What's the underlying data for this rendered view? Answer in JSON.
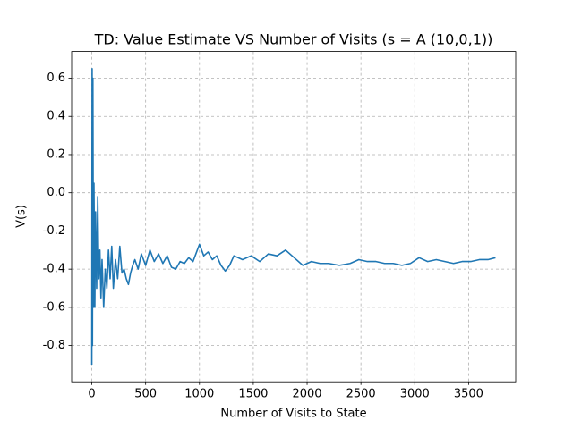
{
  "chart_data": {
    "type": "line",
    "title": "TD: Value Estimate VS Number of Visits (s = A (10,0,1))",
    "xlabel": "Number of Visits to State",
    "ylabel": "V(s)",
    "x": [
      0,
      3,
      6,
      10,
      15,
      20,
      28,
      35,
      45,
      55,
      65,
      75,
      85,
      95,
      110,
      125,
      140,
      155,
      170,
      185,
      200,
      220,
      240,
      260,
      280,
      300,
      320,
      340,
      360,
      380,
      400,
      430,
      460,
      500,
      540,
      580,
      620,
      660,
      700,
      740,
      780,
      820,
      860,
      900,
      940,
      980,
      1000,
      1040,
      1080,
      1120,
      1160,
      1200,
      1240,
      1280,
      1320,
      1400,
      1480,
      1560,
      1640,
      1720,
      1800,
      1880,
      1960,
      2040,
      2120,
      2200,
      2300,
      2400,
      2480,
      2560,
      2640,
      2720,
      2800,
      2880,
      2960,
      3040,
      3120,
      3200,
      3280,
      3360,
      3440,
      3520,
      3600,
      3680,
      3750
    ],
    "series": [
      {
        "color": "#1f77b4",
        "values": [
          -0.9,
          0.65,
          -0.8,
          0.6,
          -0.6,
          0.05,
          -0.6,
          -0.1,
          -0.5,
          -0.02,
          -0.45,
          -0.3,
          -0.55,
          -0.35,
          -0.6,
          -0.4,
          -0.5,
          -0.3,
          -0.45,
          -0.28,
          -0.5,
          -0.35,
          -0.45,
          -0.28,
          -0.42,
          -0.4,
          -0.45,
          -0.48,
          -0.42,
          -0.38,
          -0.35,
          -0.4,
          -0.32,
          -0.38,
          -0.3,
          -0.36,
          -0.32,
          -0.37,
          -0.33,
          -0.39,
          -0.4,
          -0.36,
          -0.37,
          -0.34,
          -0.36,
          -0.3,
          -0.27,
          -0.33,
          -0.31,
          -0.35,
          -0.33,
          -0.38,
          -0.41,
          -0.38,
          -0.33,
          -0.35,
          -0.33,
          -0.36,
          -0.32,
          -0.33,
          -0.3,
          -0.34,
          -0.38,
          -0.36,
          -0.37,
          -0.37,
          -0.38,
          -0.37,
          -0.35,
          -0.36,
          -0.36,
          -0.37,
          -0.37,
          -0.38,
          -0.37,
          -0.34,
          -0.36,
          -0.35,
          -0.36,
          -0.37,
          -0.36,
          -0.36,
          -0.35,
          -0.35,
          -0.34
        ]
      }
    ],
    "xlim": [
      -187.5,
      3937.5
    ],
    "xticks": [
      0,
      500,
      1000,
      1500,
      2000,
      2500,
      3000,
      3500
    ],
    "ylim": [
      -0.99,
      0.74
    ],
    "yticks": [
      -0.8,
      -0.6,
      -0.4,
      -0.2,
      {
        "value": 0,
        "label": "0.0"
      },
      0.2,
      0.4,
      0.6
    ],
    "grid": true
  }
}
